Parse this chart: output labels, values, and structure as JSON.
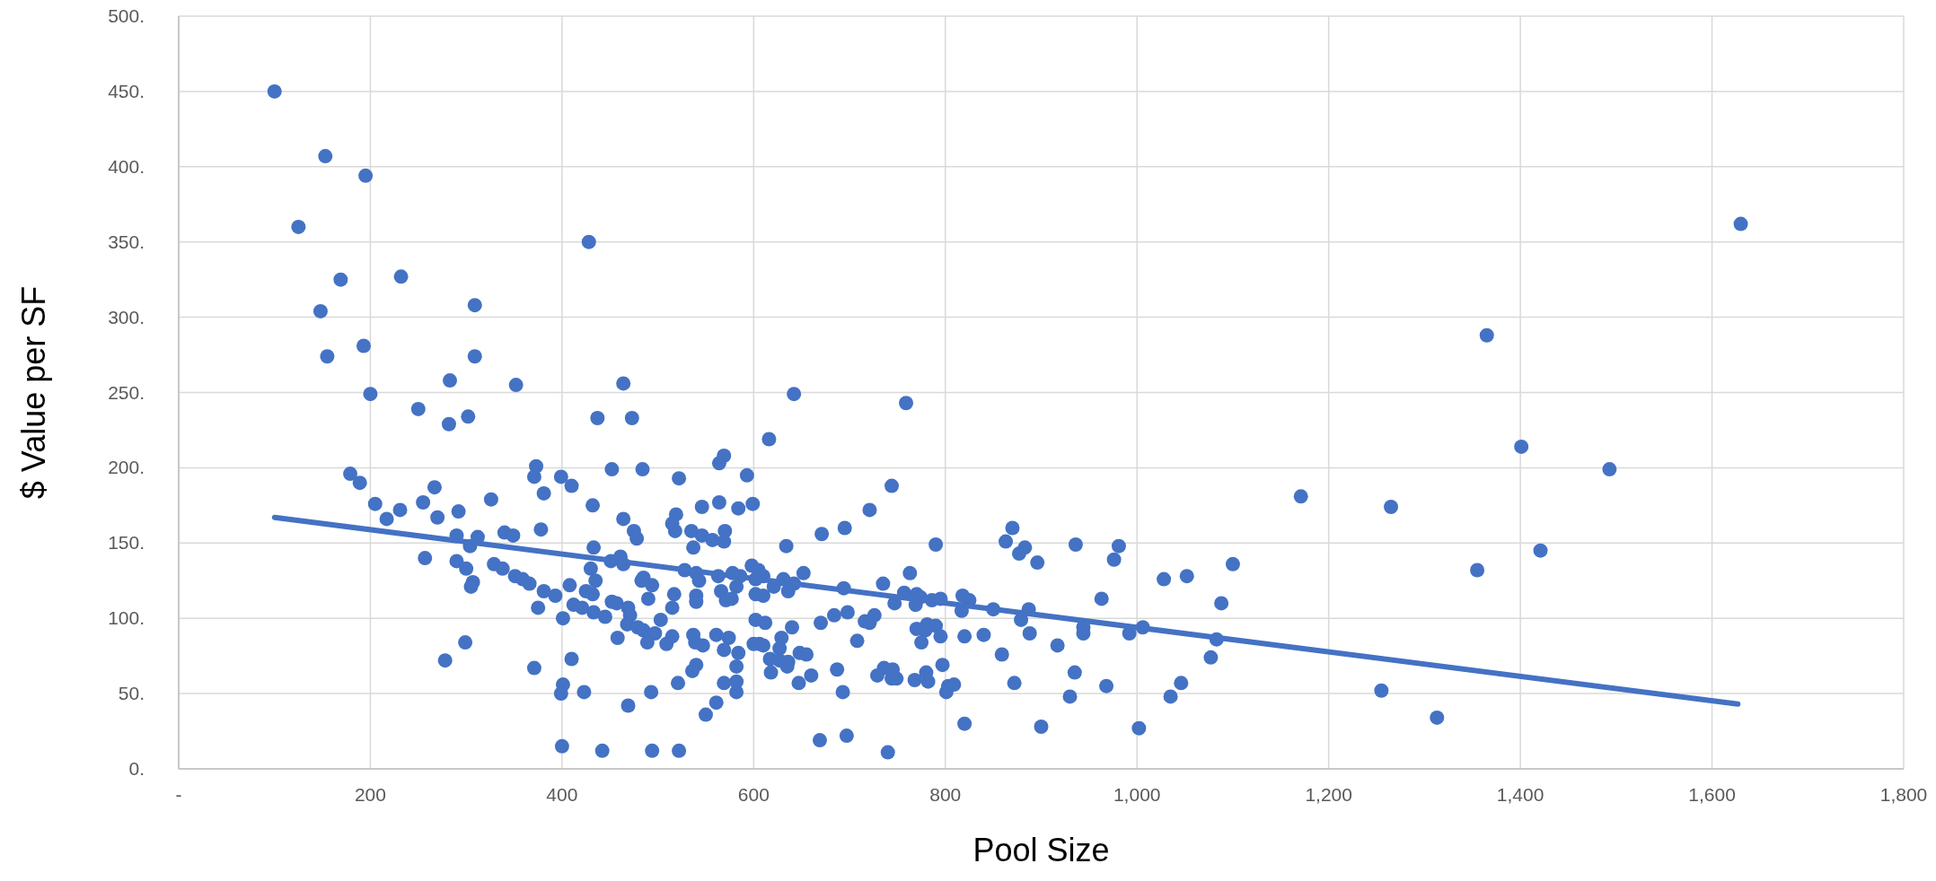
{
  "chart_data": {
    "type": "scatter",
    "xlabel": "Pool Size",
    "ylabel": "$ Value per SF",
    "xlim": [
      0,
      1800
    ],
    "ylim": [
      0,
      500
    ],
    "xticks": [
      {
        "value": 0,
        "label": "-"
      },
      200,
      400,
      600,
      800,
      {
        "value": 1000,
        "label": "1,000"
      },
      {
        "value": 1200,
        "label": "1,200"
      },
      {
        "value": 1400,
        "label": "1,400"
      },
      {
        "value": 1600,
        "label": "1,600"
      },
      {
        "value": 1800,
        "label": "1,800"
      }
    ],
    "yticks": [
      {
        "value": 0,
        "label": "0."
      },
      {
        "value": 50,
        "label": "50."
      },
      {
        "value": 100,
        "label": "100."
      },
      {
        "value": 150,
        "label": "150."
      },
      {
        "value": 200,
        "label": "200."
      },
      {
        "value": 250,
        "label": "250."
      },
      {
        "value": 300,
        "label": "300."
      },
      {
        "value": 350,
        "label": "350."
      },
      {
        "value": 400,
        "label": "400."
      },
      {
        "value": 450,
        "label": "450."
      },
      {
        "value": 500,
        "label": "500."
      }
    ],
    "grid": true,
    "series": [
      {
        "color": "#4472c4",
        "marker": "circle",
        "x": [
          100,
          153,
          195,
          125,
          169,
          232,
          148,
          309,
          193,
          155,
          309,
          283,
          352,
          464,
          200,
          428,
          250,
          302,
          282,
          437,
          473,
          642,
          759,
          1365,
          1630,
          569,
          564,
          179,
          189,
          373,
          371,
          452,
          484,
          399,
          410,
          522,
          593,
          267,
          326,
          205,
          255,
          231,
          292,
          217,
          270,
          381,
          432,
          546,
          564,
          584,
          519,
          464,
          515,
          518,
          378,
          475,
          478,
          535,
          546,
          557,
          570,
          569,
          290,
          312,
          304,
          340,
          349,
          433,
          537,
          257,
          290,
          300,
          307,
          305,
          329,
          338,
          351,
          359,
          366,
          451,
          461,
          464,
          430,
          435,
          408,
          381,
          393,
          425,
          432,
          375,
          401,
          412,
          421,
          433,
          445,
          452,
          457,
          469,
          471,
          468,
          479,
          485,
          497,
          485,
          483,
          494,
          490,
          503,
          515,
          517,
          528,
          540,
          543,
          540,
          540,
          563,
          578,
          586,
          566,
          582,
          571,
          577,
          458,
          489,
          509,
          515,
          537,
          539,
          547,
          561,
          574,
          569,
          584,
          582,
          540,
          536,
          569,
          582,
          582,
          521,
          561,
          550,
          299,
          278,
          371,
          410,
          401,
          399,
          423,
          493,
          469,
          400,
          442,
          494,
          522,
          616,
          744,
          599,
          721,
          695,
          671,
          634,
          790,
          870,
          863,
          883,
          877,
          896,
          936,
          981,
          976,
          1171,
          1100,
          1028,
          1052,
          963,
          1088,
          598,
          605,
          602,
          610,
          621,
          631,
          636,
          642,
          652,
          602,
          610,
          602,
          612,
          629,
          640,
          600,
          606,
          610,
          627,
          617,
          627,
          636,
          648,
          655,
          618,
          635,
          660,
          647,
          694,
          670,
          684,
          698,
          687,
          708,
          693,
          669,
          697,
          740,
          735,
          763,
          747,
          757,
          770,
          774,
          769,
          716,
          721,
          726,
          770,
          781,
          779,
          790,
          795,
          786,
          795,
          775,
          736,
          745,
          729,
          744,
          749,
          768,
          782,
          780,
          797,
          801,
          803,
          809,
          820,
          818,
          825,
          817,
          820,
          840,
          850,
          859,
          872,
          879,
          887,
          888,
          917,
          935,
          930,
          900,
          944,
          944,
          968,
          992,
          1006,
          1002,
          1035,
          1046,
          1077,
          1083,
          1401,
          1493,
          1265,
          1355,
          1421,
          1255,
          1313
        ],
        "values": [
          450,
          407,
          394,
          360,
          325,
          327,
          304,
          308,
          281,
          274,
          274,
          258,
          255,
          256,
          249,
          350,
          239,
          234,
          229,
          233,
          233,
          249,
          243,
          288,
          362,
          208,
          203,
          196,
          190,
          201,
          194,
          199,
          199,
          194,
          188,
          193,
          195,
          187,
          179,
          176,
          177,
          172,
          171,
          166,
          167,
          183,
          175,
          174,
          177,
          173,
          169,
          166,
          163,
          158,
          159,
          158,
          153,
          158,
          155,
          152,
          158,
          151,
          155,
          154,
          148,
          157,
          155,
          147,
          147,
          140,
          138,
          133,
          124,
          121,
          136,
          133,
          128,
          126,
          123,
          138,
          141,
          136,
          133,
          125,
          122,
          118,
          115,
          118,
          116,
          107,
          100,
          109,
          107,
          104,
          101,
          111,
          110,
          107,
          102,
          96,
          94,
          92,
          90,
          127,
          125,
          122,
          113,
          99,
          107,
          116,
          132,
          130,
          125,
          115,
          111,
          128,
          130,
          128,
          118,
          121,
          112,
          113,
          87,
          84,
          83,
          88,
          89,
          84,
          82,
          89,
          87,
          79,
          77,
          68,
          69,
          65,
          57,
          58,
          51,
          57,
          44,
          36,
          84,
          72,
          67,
          73,
          56,
          50,
          51,
          51,
          42,
          15,
          12,
          12,
          12,
          219,
          188,
          176,
          172,
          160,
          156,
          148,
          149,
          160,
          151,
          147,
          143,
          137,
          149,
          148,
          139,
          181,
          136,
          126,
          128,
          113,
          110,
          135,
          132,
          126,
          128,
          121,
          126,
          118,
          123,
          130,
          116,
          115,
          99,
          97,
          87,
          94,
          83,
          83,
          82,
          80,
          73,
          72,
          71,
          77,
          76,
          64,
          68,
          62,
          57,
          120,
          97,
          102,
          104,
          66,
          85,
          51,
          19,
          22,
          11,
          123,
          130,
          110,
          117,
          116,
          114,
          109,
          98,
          97,
          102,
          93,
          96,
          92,
          95,
          88,
          112,
          113,
          84,
          67,
          66,
          62,
          60,
          60,
          59,
          58,
          64,
          69,
          51,
          55,
          56,
          30,
          115,
          112,
          105,
          88,
          89,
          106,
          76,
          57,
          99,
          106,
          90,
          82,
          64,
          48,
          28,
          94,
          90,
          55,
          90,
          94,
          27,
          48,
          57,
          74,
          86,
          214,
          199,
          174,
          132,
          145,
          52,
          34
        ]
      },
      {
        "type": "line",
        "color": "#4472c4",
        "marker": "none",
        "line_style": "solid",
        "x": [
          100,
          1627
        ],
        "values": [
          167,
          43
        ]
      }
    ]
  }
}
